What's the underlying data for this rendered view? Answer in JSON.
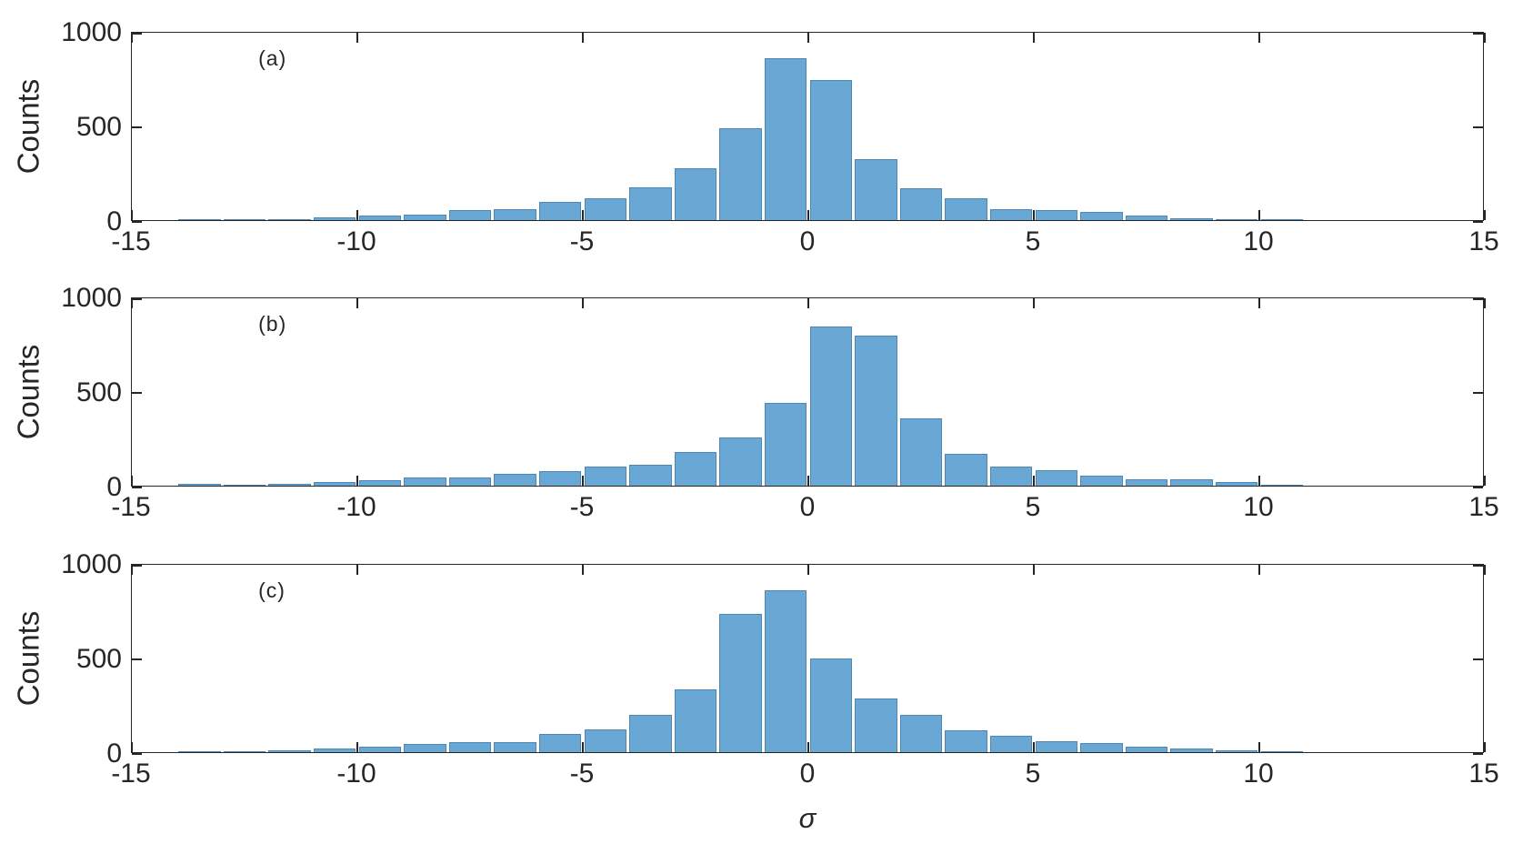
{
  "figure": {
    "background": "#ffffff",
    "axis_color": "#262626",
    "text_color": "#262626",
    "bar_fill_color": "#69A8D4",
    "bar_edge_color": "#4D87B5"
  },
  "chart_data": [
    {
      "type": "bar",
      "subtype": "histogram",
      "panel_label": "(a)",
      "ylabel": "Counts",
      "xlabel": "",
      "xlim": [
        -15,
        15
      ],
      "ylim": [
        0,
        1000
      ],
      "xticks": [
        -15,
        -10,
        -5,
        0,
        5,
        10,
        15
      ],
      "xtick_labels": [
        "-15",
        "-10",
        "-5",
        "0",
        "5",
        "10",
        "15"
      ],
      "yticks": [
        0,
        500,
        1000
      ],
      "ytick_labels": [
        "0",
        "500",
        "1000"
      ],
      "bin_width": 1,
      "bin_start": -14,
      "counts": [
        3,
        4,
        6,
        15,
        24,
        29,
        53,
        57,
        95,
        115,
        173,
        275,
        488,
        856,
        739,
        320,
        166,
        117,
        59,
        55,
        44,
        24,
        11,
        5,
        2
      ]
    },
    {
      "type": "bar",
      "subtype": "histogram",
      "panel_label": "(b)",
      "ylabel": "Counts",
      "xlabel": "",
      "xlim": [
        -15,
        15
      ],
      "ylim": [
        0,
        1000
      ],
      "xticks": [
        -15,
        -10,
        -5,
        0,
        5,
        10,
        15
      ],
      "xtick_labels": [
        "-15",
        "-10",
        "-5",
        "0",
        "5",
        "10",
        "15"
      ],
      "yticks": [
        0,
        500,
        1000
      ],
      "ytick_labels": [
        "0",
        "500",
        "1000"
      ],
      "bin_width": 1,
      "bin_start": -14,
      "counts": [
        9,
        5,
        9,
        20,
        29,
        45,
        41,
        61,
        76,
        102,
        113,
        178,
        256,
        438,
        843,
        794,
        358,
        167,
        102,
        82,
        54,
        36,
        32,
        18,
        2
      ]
    },
    {
      "type": "bar",
      "subtype": "histogram",
      "panel_label": "(c)",
      "ylabel": "Counts",
      "xlabel": "σ",
      "xlim": [
        -15,
        15
      ],
      "ylim": [
        0,
        1000
      ],
      "xticks": [
        -15,
        -10,
        -5,
        0,
        5,
        10,
        15
      ],
      "xtick_labels": [
        "-15",
        "-10",
        "-5",
        "0",
        "5",
        "10",
        "15"
      ],
      "yticks": [
        0,
        500,
        1000
      ],
      "ytick_labels": [
        "0",
        "500",
        "1000"
      ],
      "bin_width": 1,
      "bin_start": -14,
      "counts": [
        3,
        7,
        12,
        19,
        31,
        43,
        55,
        55,
        94,
        121,
        197,
        332,
        731,
        854,
        497,
        282,
        199,
        117,
        87,
        59,
        50,
        29,
        19,
        10,
        5
      ]
    }
  ]
}
